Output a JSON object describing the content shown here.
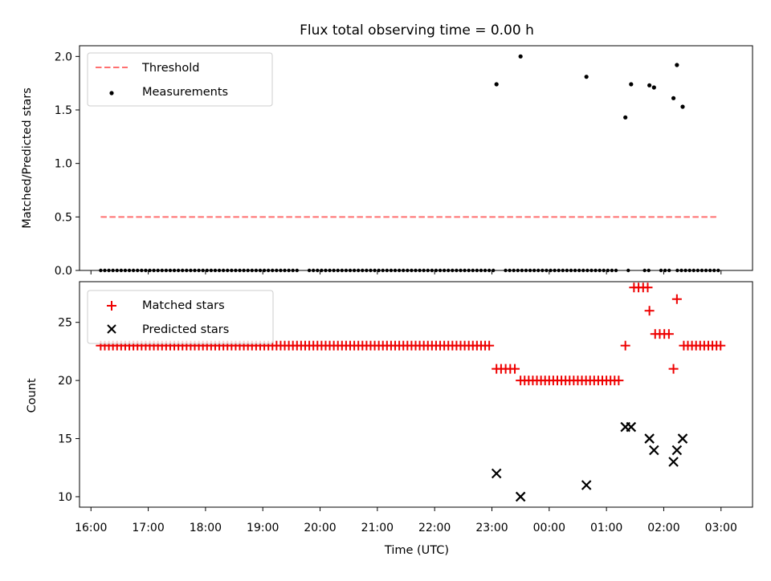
{
  "chart_data": [
    {
      "type": "scatter",
      "title": "Flux total observing time = 0.00 h",
      "ylabel": "Matched/Predicted stars",
      "xlabel": "",
      "xlim": [
        15.8,
        27.55
      ],
      "ylim": [
        0,
        2.1
      ],
      "yticks": [
        0.0,
        0.5,
        1.0,
        1.5,
        2.0
      ],
      "ytick_labels": [
        "0.0",
        "0.5",
        "1.0",
        "1.5",
        "2.0"
      ],
      "legend": {
        "placement": "top-left",
        "entries": [
          "Threshold",
          "Measurements"
        ]
      },
      "threshold": {
        "name": "Threshold",
        "value": 0.5,
        "x_range": [
          16.17,
          26.95
        ],
        "color": "#ff7070"
      },
      "series": [
        {
          "name": "Measurements",
          "marker": "dot",
          "color": "#000000",
          "zero_points": {
            "start": 16.17,
            "end": 27.0,
            "step": 0.0714,
            "gaps": [
              [
                19.6,
                19.75
              ],
              [
                23.05,
                23.2
              ],
              [
                25.2,
                25.35
              ],
              [
                25.45,
                25.6
              ],
              [
                25.8,
                25.95
              ],
              [
                26.1,
                26.2
              ]
            ]
          },
          "points": [
            {
              "x": 23.08,
              "y": 1.74
            },
            {
              "x": 23.5,
              "y": 2.0
            },
            {
              "x": 24.65,
              "y": 1.81
            },
            {
              "x": 25.33,
              "y": 1.43
            },
            {
              "x": 25.43,
              "y": 1.74
            },
            {
              "x": 25.75,
              "y": 1.73
            },
            {
              "x": 25.83,
              "y": 1.71
            },
            {
              "x": 26.17,
              "y": 1.61
            },
            {
              "x": 26.23,
              "y": 1.92
            },
            {
              "x": 26.33,
              "y": 1.53
            }
          ]
        }
      ]
    },
    {
      "type": "scatter",
      "title": "",
      "ylabel": "Count",
      "xlabel": "Time (UTC)",
      "xlim": [
        15.8,
        27.55
      ],
      "ylim": [
        9.1,
        28.5
      ],
      "yticks": [
        10,
        15,
        20,
        25
      ],
      "ytick_labels": [
        "10",
        "15",
        "20",
        "25"
      ],
      "xticks": [
        16,
        17,
        18,
        19,
        20,
        21,
        22,
        23,
        24,
        25,
        26,
        27
      ],
      "xtick_labels": [
        "16:00",
        "17:00",
        "18:00",
        "19:00",
        "20:00",
        "21:00",
        "22:00",
        "23:00",
        "00:00",
        "01:00",
        "02:00",
        "03:00"
      ],
      "legend": {
        "placement": "top-left",
        "entries": [
          "Matched stars",
          "Predicted stars"
        ]
      },
      "series": [
        {
          "name": "Matched stars",
          "marker": "plus",
          "color": "#ee0000",
          "runs": [
            {
              "start": 16.17,
              "end": 23.0,
              "step": 0.0714,
              "y": 23
            },
            {
              "start": 23.08,
              "end": 23.4,
              "step": 0.08,
              "y": 21
            },
            {
              "start": 23.5,
              "end": 25.25,
              "step": 0.0714,
              "y": 20
            },
            {
              "start": 25.48,
              "end": 25.72,
              "step": 0.08,
              "y": 28
            },
            {
              "start": 25.85,
              "end": 26.1,
              "step": 0.08,
              "y": 24
            },
            {
              "start": 26.35,
              "end": 27.02,
              "step": 0.0714,
              "y": 23
            }
          ],
          "points": [
            {
              "x": 25.33,
              "y": 23
            },
            {
              "x": 25.75,
              "y": 26
            },
            {
              "x": 26.17,
              "y": 21
            },
            {
              "x": 26.23,
              "y": 27
            }
          ]
        },
        {
          "name": "Predicted stars",
          "marker": "x",
          "color": "#000000",
          "points": [
            {
              "x": 23.08,
              "y": 12
            },
            {
              "x": 23.5,
              "y": 10
            },
            {
              "x": 24.65,
              "y": 11
            },
            {
              "x": 25.33,
              "y": 16
            },
            {
              "x": 25.43,
              "y": 16
            },
            {
              "x": 25.75,
              "y": 15
            },
            {
              "x": 25.83,
              "y": 14
            },
            {
              "x": 26.17,
              "y": 13
            },
            {
              "x": 26.23,
              "y": 14
            },
            {
              "x": 26.33,
              "y": 15
            }
          ]
        }
      ]
    }
  ]
}
